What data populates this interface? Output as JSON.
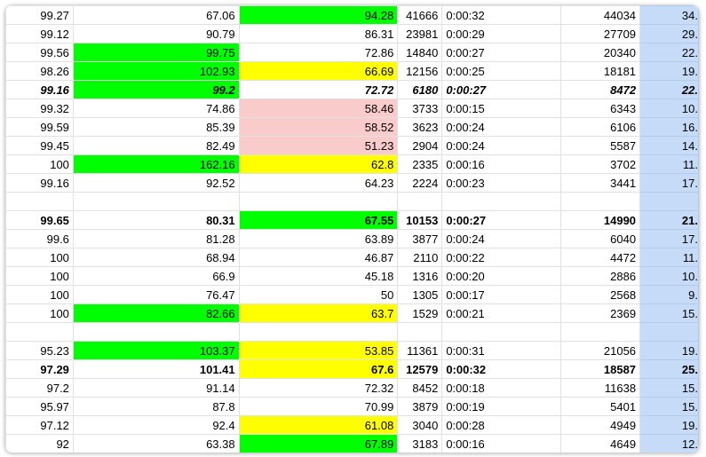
{
  "colors": {
    "green": "#00ff00",
    "yellow": "#ffff00",
    "pink": "#f9cbcb",
    "selected_column": "#c6dbf7"
  },
  "rows": [
    {
      "style": "normal",
      "cells": [
        "99.27",
        "67.06",
        "94.28",
        "41666",
        "0:00:32",
        "44034",
        "34."
      ],
      "fills": [
        "",
        "",
        "green",
        "",
        "",
        "",
        ""
      ]
    },
    {
      "style": "normal",
      "cells": [
        "99.12",
        "90.79",
        "86.31",
        "23981",
        "0:00:29",
        "27709",
        "29."
      ],
      "fills": [
        "",
        "",
        "",
        "",
        "",
        "",
        ""
      ]
    },
    {
      "style": "normal",
      "cells": [
        "99.56",
        "99.75",
        "72.86",
        "14840",
        "0:00:27",
        "20340",
        "22."
      ],
      "fills": [
        "",
        "green",
        "",
        "",
        "",
        "",
        ""
      ]
    },
    {
      "style": "normal",
      "cells": [
        "98.26",
        "102.93",
        "66.69",
        "12156",
        "0:00:25",
        "18181",
        "19."
      ],
      "fills": [
        "",
        "green",
        "yellow",
        "",
        "",
        "",
        ""
      ]
    },
    {
      "style": "bolditalic",
      "cells": [
        "99.16",
        "99.2",
        "72.72",
        "6180",
        "0:00:27",
        "8472",
        "22."
      ],
      "fills": [
        "",
        "green",
        "",
        "",
        "",
        "",
        ""
      ]
    },
    {
      "style": "normal",
      "cells": [
        "99.32",
        "74.86",
        "58.46",
        "3733",
        "0:00:15",
        "6343",
        "10."
      ],
      "fills": [
        "",
        "",
        "pink",
        "",
        "",
        "",
        ""
      ]
    },
    {
      "style": "normal",
      "cells": [
        "99.59",
        "85.39",
        "58.52",
        "3623",
        "0:00:24",
        "6106",
        "16."
      ],
      "fills": [
        "",
        "",
        "pink",
        "",
        "",
        "",
        ""
      ]
    },
    {
      "style": "normal",
      "cells": [
        "99.45",
        "82.49",
        "51.23",
        "2904",
        "0:00:24",
        "5587",
        "14."
      ],
      "fills": [
        "",
        "",
        "pink",
        "",
        "",
        "",
        ""
      ]
    },
    {
      "style": "normal",
      "cells": [
        "100",
        "162.16",
        "62.8",
        "2335",
        "0:00:16",
        "3702",
        "11."
      ],
      "fills": [
        "",
        "green",
        "yellow",
        "",
        "",
        "",
        ""
      ]
    },
    {
      "style": "normal",
      "cells": [
        "99.16",
        "92.52",
        "64.23",
        "2224",
        "0:00:23",
        "3441",
        "17."
      ],
      "fills": [
        "",
        "",
        "",
        "",
        "",
        "",
        ""
      ]
    },
    {
      "style": "normal",
      "cells": [
        "",
        "",
        "",
        "",
        "",
        "",
        ""
      ],
      "fills": [
        "",
        "",
        "",
        "",
        "",
        "",
        ""
      ]
    },
    {
      "style": "bold",
      "cells": [
        "99.65",
        "80.31",
        "67.55",
        "10153",
        "0:00:27",
        "14990",
        "21."
      ],
      "fills": [
        "",
        "",
        "green",
        "",
        "",
        "",
        ""
      ]
    },
    {
      "style": "normal",
      "cells": [
        "99.6",
        "81.28",
        "63.89",
        "3877",
        "0:00:24",
        "6040",
        "17."
      ],
      "fills": [
        "",
        "",
        "",
        "",
        "",
        "",
        ""
      ]
    },
    {
      "style": "normal",
      "cells": [
        "100",
        "68.94",
        "46.87",
        "2110",
        "0:00:22",
        "4472",
        "11."
      ],
      "fills": [
        "",
        "",
        "",
        "",
        "",
        "",
        ""
      ]
    },
    {
      "style": "normal",
      "cells": [
        "100",
        "66.9",
        "45.18",
        "1316",
        "0:00:20",
        "2886",
        "10."
      ],
      "fills": [
        "",
        "",
        "",
        "",
        "",
        "",
        ""
      ]
    },
    {
      "style": "normal",
      "cells": [
        "100",
        "76.47",
        "50",
        "1305",
        "0:00:17",
        "2568",
        "9."
      ],
      "fills": [
        "",
        "",
        "",
        "",
        "",
        "",
        ""
      ]
    },
    {
      "style": "normal",
      "cells": [
        "100",
        "82.66",
        "63.7",
        "1529",
        "0:00:21",
        "2369",
        "15."
      ],
      "fills": [
        "",
        "green",
        "yellow",
        "",
        "",
        "",
        ""
      ]
    },
    {
      "style": "normal",
      "cells": [
        "",
        "",
        "",
        "",
        "",
        "",
        ""
      ],
      "fills": [
        "",
        "",
        "",
        "",
        "",
        "",
        ""
      ]
    },
    {
      "style": "normal",
      "cells": [
        "95.23",
        "103.37",
        "53.85",
        "11361",
        "0:00:31",
        "21056",
        "19."
      ],
      "fills": [
        "",
        "green",
        "yellow",
        "",
        "",
        "",
        ""
      ]
    },
    {
      "style": "bold",
      "cells": [
        "97.29",
        "101.41",
        "67.6",
        "12579",
        "0:00:32",
        "18587",
        "25."
      ],
      "fills": [
        "",
        "",
        "yellow",
        "",
        "",
        "",
        ""
      ]
    },
    {
      "style": "normal",
      "cells": [
        "97.2",
        "91.14",
        "72.32",
        "8452",
        "0:00:18",
        "11638",
        "15."
      ],
      "fills": [
        "",
        "",
        "",
        "",
        "",
        "",
        ""
      ]
    },
    {
      "style": "normal",
      "cells": [
        "95.97",
        "87.8",
        "70.99",
        "3879",
        "0:00:19",
        "5401",
        "15."
      ],
      "fills": [
        "",
        "",
        "",
        "",
        "",
        "",
        ""
      ]
    },
    {
      "style": "normal",
      "cells": [
        "97.12",
        "92.4",
        "61.08",
        "3040",
        "0:00:28",
        "4949",
        "19."
      ],
      "fills": [
        "",
        "",
        "yellow",
        "",
        "",
        "",
        ""
      ]
    },
    {
      "style": "normal",
      "cells": [
        "92",
        "63.38",
        "67.89",
        "3183",
        "0:00:16",
        "4649",
        "12."
      ],
      "fills": [
        "",
        "",
        "green",
        "",
        "",
        "",
        ""
      ]
    }
  ]
}
